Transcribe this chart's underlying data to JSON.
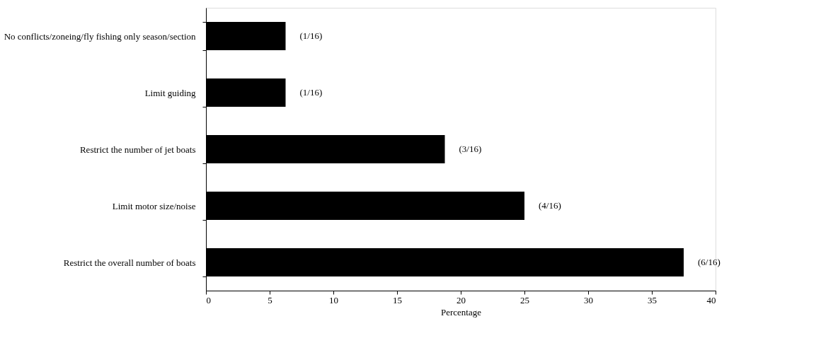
{
  "chart_data": {
    "type": "bar",
    "orientation": "horizontal",
    "categories": [
      "No conflicts/zoneing/fly fishing only season/section",
      "Limit guiding",
      "Restrict  the number of jet boats",
      "Limit  motor size/noise",
      "Restrict  the overall number of boats"
    ],
    "values": [
      6.25,
      6.25,
      18.75,
      25,
      37.5
    ],
    "value_labels": [
      "(1/16)",
      "(1/16)",
      "(3/16)",
      "(4/16)",
      "(6/16)"
    ],
    "color": "#000000",
    "xlabel": "Percentage",
    "xlim": [
      0,
      40
    ],
    "xticks": [
      0,
      5,
      10,
      15,
      20,
      25,
      30,
      35,
      40
    ],
    "grid": false
  }
}
